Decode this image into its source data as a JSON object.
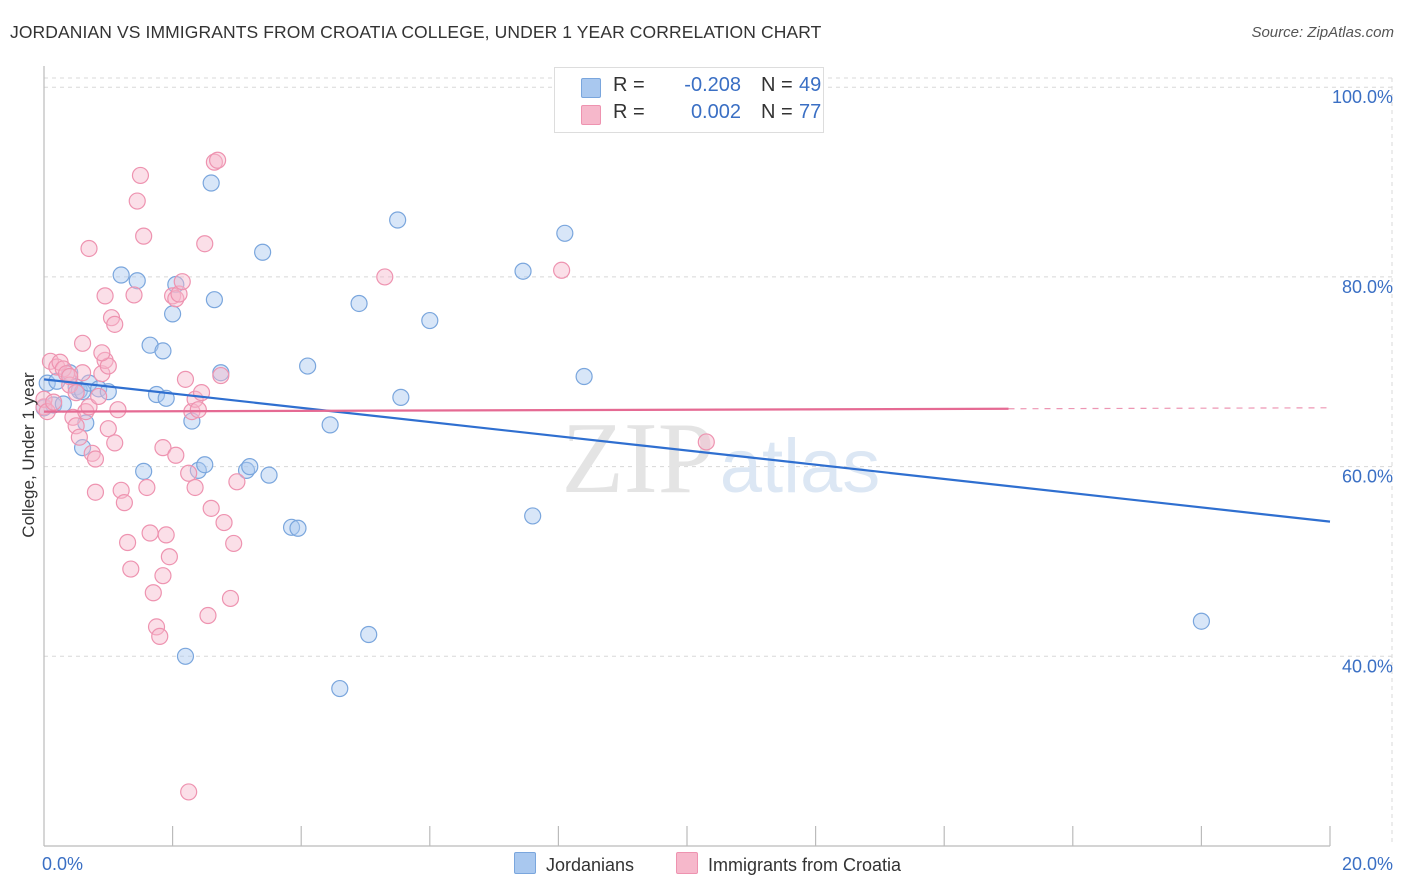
{
  "header": {
    "title": "JORDANIAN VS IMMIGRANTS FROM CROATIA COLLEGE, UNDER 1 YEAR CORRELATION CHART",
    "source": "Source: ZipAtlas.com"
  },
  "stats": {
    "rows": [
      {
        "r_label": "R =",
        "r_value": "-0.208",
        "n_label": "N =",
        "n_value": "49"
      },
      {
        "r_label": "R =",
        "r_value": "0.002",
        "n_label": "N =",
        "n_value": "77"
      }
    ]
  },
  "legend": {
    "items": [
      {
        "label": "Jordanians"
      },
      {
        "label": "Immigrants from Croatia"
      }
    ]
  },
  "watermark": {
    "zip": "ZIP",
    "atlas": "atlas"
  },
  "colors": {
    "blue_fill": "#a9c8ef",
    "blue_stroke": "#7aa6dd",
    "blue_line": "#2f6fd0",
    "pink_fill": "#f6b8cb",
    "pink_stroke": "#ee93b0",
    "pink_line": "#e56a93",
    "tick_label": "#3a6fc4",
    "grid": "#d8d8d8"
  },
  "chart_data": {
    "type": "scatter",
    "title": "JORDANIAN VS IMMIGRANTS FROM CROATIA COLLEGE, UNDER 1 YEAR CORRELATION CHART",
    "xlabel": "",
    "ylabel": "College, Under 1 year",
    "xlim": [
      0,
      20
    ],
    "ylim": [
      20,
      101.5
    ],
    "x_ticks": [
      {
        "value": 0,
        "label": "0.0%"
      },
      {
        "value": 20,
        "label": "20.0%"
      }
    ],
    "y_ticks": [
      {
        "value": 40,
        "label": "40.0%"
      },
      {
        "value": 60,
        "label": "60.0%"
      },
      {
        "value": 80,
        "label": "80.0%"
      },
      {
        "value": 100,
        "label": "100.0%"
      }
    ],
    "grid": true,
    "series": [
      {
        "name": "Jordanians",
        "color": "blue",
        "r": -0.208,
        "n": 49,
        "trend": {
          "x0": 0,
          "y0": 69.2,
          "x1": 20,
          "y1": 54.2,
          "dashed_from": null
        },
        "points": [
          [
            0.0,
            66.2
          ],
          [
            0.05,
            68.8
          ],
          [
            0.15,
            66.5
          ],
          [
            0.3,
            66.6
          ],
          [
            0.4,
            69.9
          ],
          [
            0.5,
            68.4
          ],
          [
            0.55,
            68.0
          ],
          [
            0.6,
            67.9
          ],
          [
            0.65,
            64.6
          ],
          [
            0.7,
            68.8
          ],
          [
            0.85,
            68.2
          ],
          [
            1.0,
            67.9
          ],
          [
            0.6,
            62.0
          ],
          [
            1.2,
            80.2
          ],
          [
            1.45,
            79.6
          ],
          [
            1.65,
            72.8
          ],
          [
            1.75,
            67.6
          ],
          [
            1.85,
            72.2
          ],
          [
            1.9,
            67.2
          ],
          [
            2.0,
            76.1
          ],
          [
            2.05,
            79.2
          ],
          [
            2.2,
            40.0
          ],
          [
            2.3,
            64.8
          ],
          [
            2.4,
            59.6
          ],
          [
            2.5,
            60.2
          ],
          [
            2.6,
            89.9
          ],
          [
            2.65,
            77.6
          ],
          [
            2.75,
            69.9
          ],
          [
            3.15,
            59.6
          ],
          [
            3.2,
            60.0
          ],
          [
            3.4,
            82.6
          ],
          [
            3.5,
            59.1
          ],
          [
            3.85,
            53.6
          ],
          [
            3.95,
            53.5
          ],
          [
            4.1,
            70.6
          ],
          [
            4.45,
            64.4
          ],
          [
            4.6,
            36.6
          ],
          [
            4.9,
            77.2
          ],
          [
            5.05,
            42.3
          ],
          [
            5.5,
            86.0
          ],
          [
            5.55,
            67.3
          ],
          [
            6.0,
            75.4
          ],
          [
            7.45,
            80.6
          ],
          [
            7.6,
            54.8
          ],
          [
            8.1,
            84.6
          ],
          [
            8.4,
            69.5
          ],
          [
            18.0,
            43.7
          ],
          [
            1.55,
            59.5
          ],
          [
            0.2,
            69.0
          ]
        ]
      },
      {
        "name": "Immigrants from Croatia",
        "color": "pink",
        "r": 0.002,
        "n": 77,
        "trend": {
          "x0": 0,
          "y0": 65.8,
          "x1": 20,
          "y1": 66.2,
          "dashed_from": 15.0
        },
        "points": [
          [
            0.0,
            66.3
          ],
          [
            0.0,
            67.1
          ],
          [
            0.05,
            65.8
          ],
          [
            0.1,
            71.1
          ],
          [
            0.15,
            66.8
          ],
          [
            0.2,
            70.5
          ],
          [
            0.25,
            71.0
          ],
          [
            0.3,
            70.3
          ],
          [
            0.35,
            69.8
          ],
          [
            0.4,
            68.6
          ],
          [
            0.45,
            65.2
          ],
          [
            0.5,
            64.3
          ],
          [
            0.55,
            63.1
          ],
          [
            0.6,
            69.9
          ],
          [
            0.65,
            65.8
          ],
          [
            0.7,
            66.3
          ],
          [
            0.75,
            61.4
          ],
          [
            0.8,
            60.8
          ],
          [
            0.85,
            67.4
          ],
          [
            0.9,
            69.8
          ],
          [
            0.95,
            71.2
          ],
          [
            1.0,
            70.6
          ],
          [
            1.05,
            75.7
          ],
          [
            1.1,
            75.0
          ],
          [
            1.15,
            66.0
          ],
          [
            1.2,
            57.5
          ],
          [
            1.25,
            56.2
          ],
          [
            1.3,
            52.0
          ],
          [
            1.35,
            49.2
          ],
          [
            1.4,
            78.1
          ],
          [
            1.45,
            88.0
          ],
          [
            1.5,
            90.7
          ],
          [
            1.55,
            84.3
          ],
          [
            1.6,
            57.8
          ],
          [
            1.7,
            46.7
          ],
          [
            1.75,
            43.1
          ],
          [
            1.8,
            42.1
          ],
          [
            1.85,
            48.5
          ],
          [
            1.9,
            52.8
          ],
          [
            1.95,
            50.5
          ],
          [
            2.0,
            78.0
          ],
          [
            2.05,
            77.7
          ],
          [
            2.1,
            78.2
          ],
          [
            2.15,
            79.5
          ],
          [
            2.2,
            69.2
          ],
          [
            2.25,
            59.3
          ],
          [
            2.3,
            65.8
          ],
          [
            2.35,
            67.1
          ],
          [
            2.4,
            66.0
          ],
          [
            2.45,
            67.8
          ],
          [
            2.5,
            83.5
          ],
          [
            2.55,
            44.3
          ],
          [
            2.6,
            55.6
          ],
          [
            2.65,
            92.1
          ],
          [
            2.7,
            92.3
          ],
          [
            2.75,
            69.6
          ],
          [
            2.8,
            54.1
          ],
          [
            2.9,
            46.1
          ],
          [
            2.95,
            51.9
          ],
          [
            3.0,
            58.4
          ],
          [
            1.0,
            64.0
          ],
          [
            0.9,
            72.0
          ],
          [
            1.1,
            62.5
          ],
          [
            0.7,
            83.0
          ],
          [
            0.95,
            78.0
          ],
          [
            2.35,
            57.8
          ],
          [
            1.65,
            53.0
          ],
          [
            0.8,
            57.3
          ],
          [
            5.3,
            80.0
          ],
          [
            8.05,
            80.7
          ],
          [
            10.3,
            62.6
          ],
          [
            2.25,
            25.7
          ],
          [
            0.6,
            73.0
          ],
          [
            1.85,
            62.0
          ],
          [
            2.05,
            61.2
          ],
          [
            0.5,
            67.8
          ],
          [
            0.4,
            69.5
          ]
        ]
      }
    ]
  }
}
